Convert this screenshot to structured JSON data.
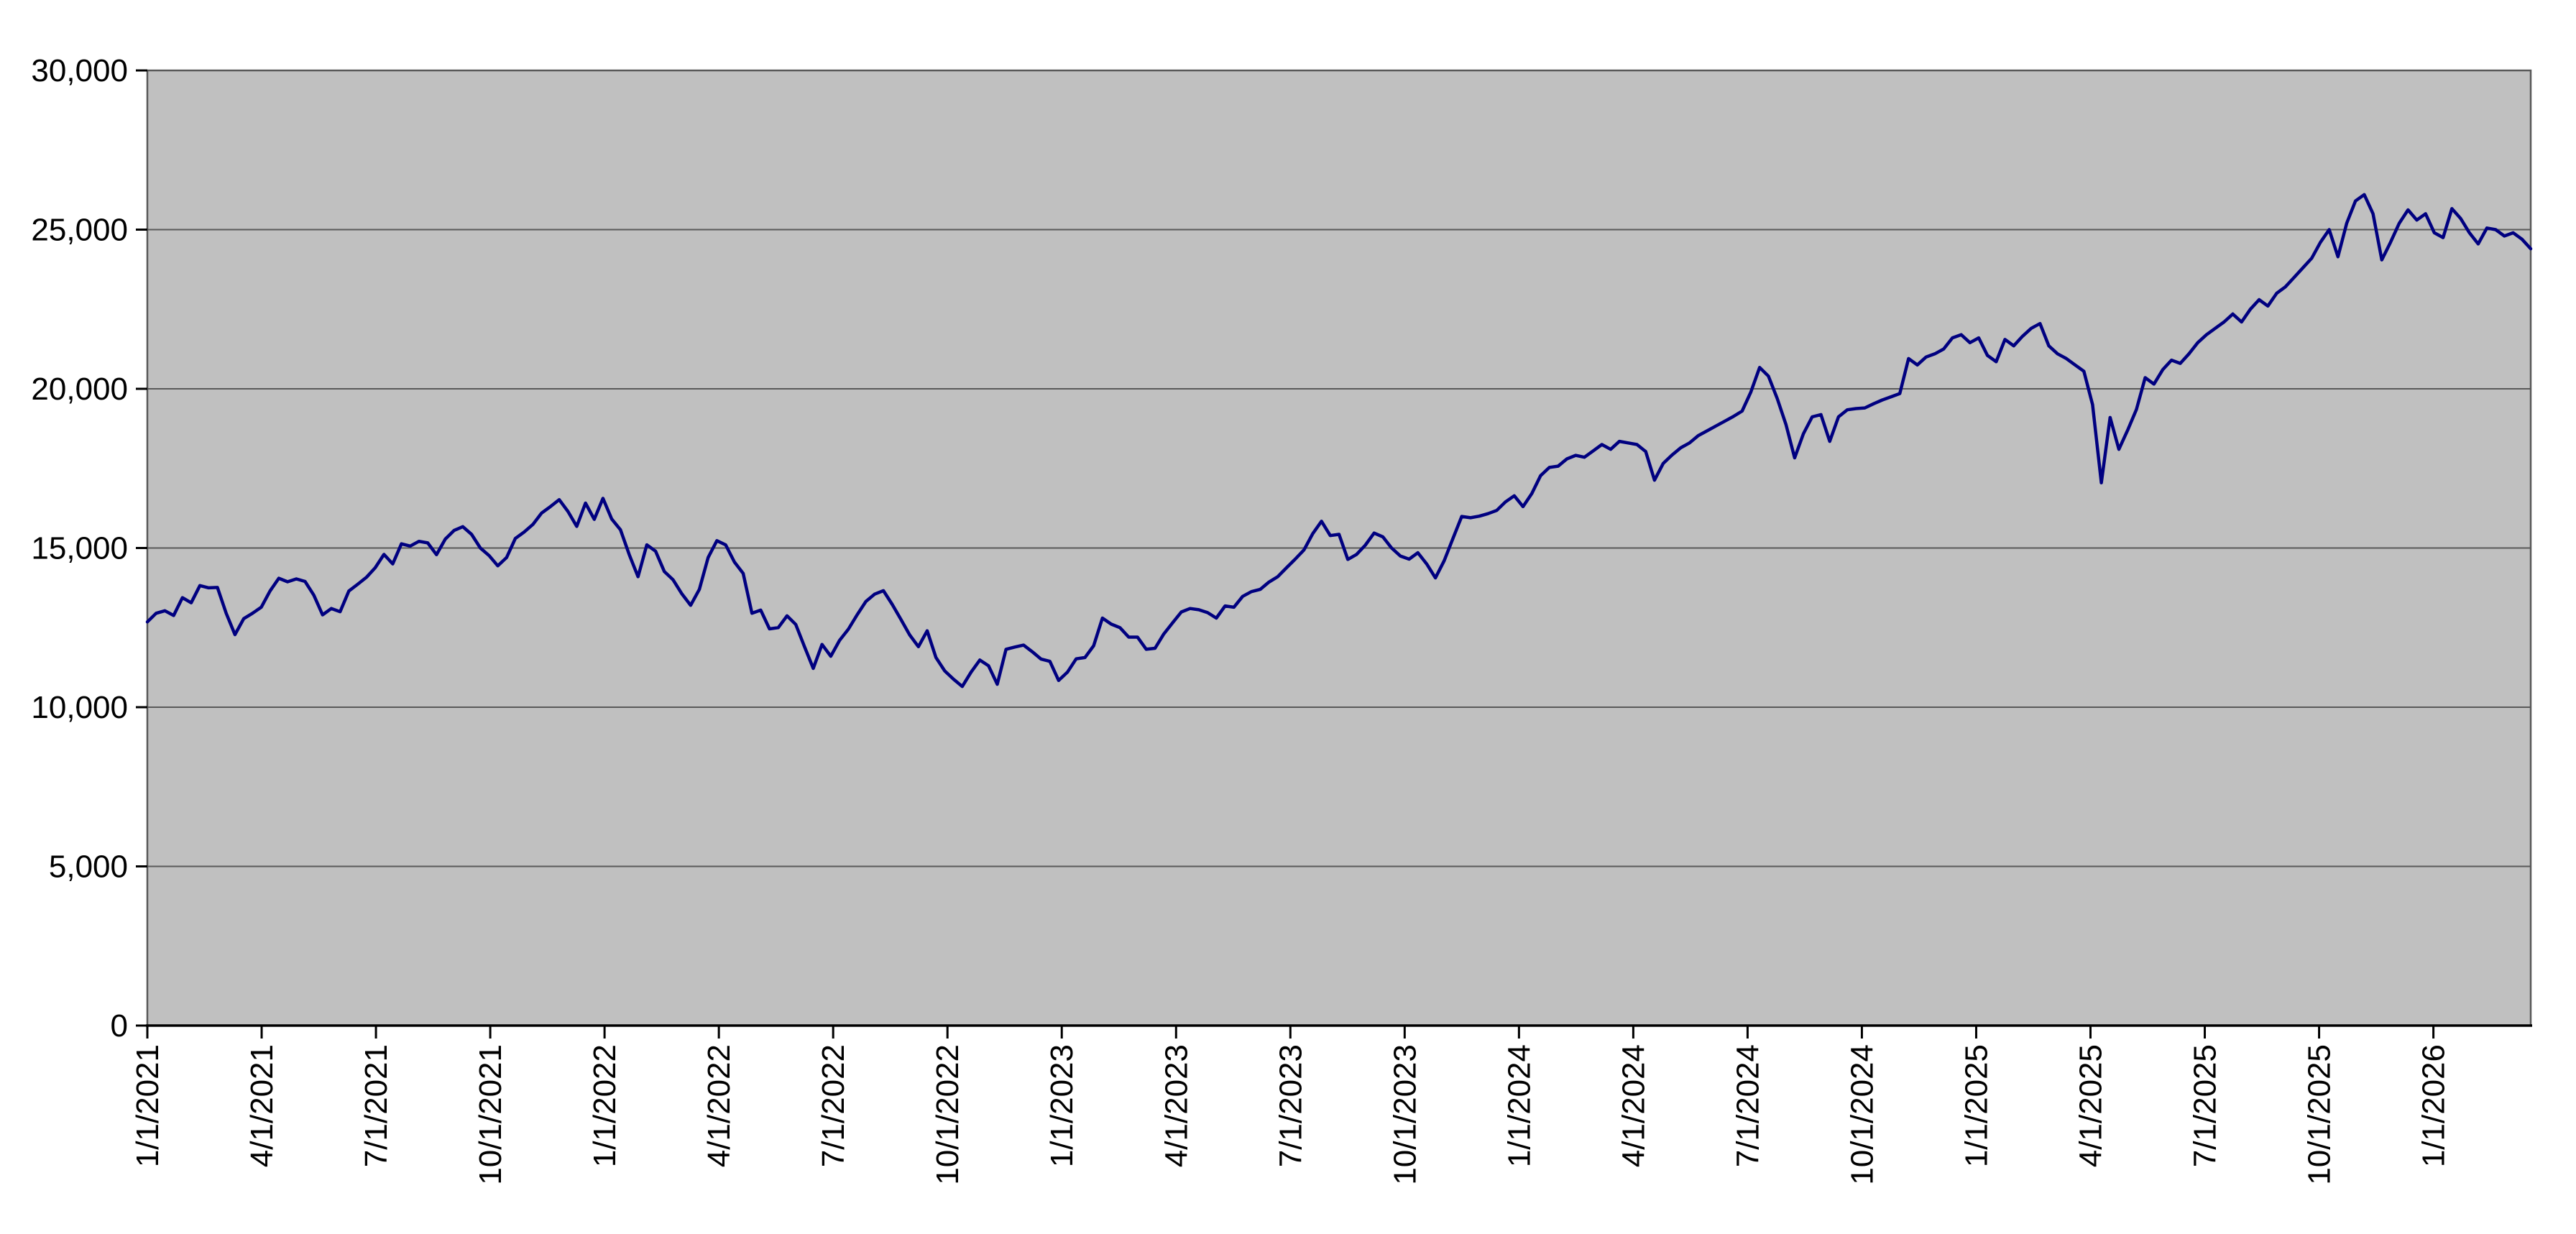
{
  "chart_data": {
    "type": "line",
    "title": "",
    "xlabel": "",
    "ylabel": "",
    "ylim": [
      0,
      30000
    ],
    "grid": "horizontal-major",
    "legend": "none",
    "plot_bg_color": "#c0c0c0",
    "grid_color": "#595959",
    "border_color": "#595959",
    "axis_color": "#000000",
    "y_axis": {
      "values": [
        0,
        5000,
        10000,
        15000,
        20000,
        25000,
        30000
      ],
      "labels": [
        "0",
        "5,000",
        "10,000",
        "15,000",
        "20,000",
        "25,000",
        "30,000"
      ]
    },
    "x_axis": {
      "labels": [
        "1/1/2021",
        "4/1/2021",
        "7/1/2021",
        "10/1/2021",
        "1/1/2022",
        "4/1/2022",
        "7/1/2022",
        "10/1/2022",
        "1/1/2023",
        "4/1/2023",
        "7/1/2023",
        "10/1/2023",
        "1/1/2024",
        "4/1/2024",
        "7/1/2024",
        "10/1/2024",
        "1/1/2025",
        "4/1/2025",
        "7/1/2025",
        "10/1/2025",
        "1/1/2026"
      ],
      "tick_interval_months": 3,
      "label_rotation_degrees": -90
    },
    "series": [
      {
        "name": "",
        "color": "#000080",
        "start_date": "1/1/2021",
        "point_interval": "weekly",
        "values": [
          12680,
          12950,
          13030,
          12880,
          13440,
          13280,
          13820,
          13750,
          13760,
          12950,
          12280,
          12780,
          12950,
          13140,
          13650,
          14050,
          13940,
          14030,
          13950,
          13520,
          12900,
          13100,
          13000,
          13650,
          13860,
          14080,
          14380,
          14800,
          14500,
          15130,
          15060,
          15210,
          15160,
          14790,
          15280,
          15550,
          15670,
          15430,
          15000,
          14760,
          14440,
          14700,
          15300,
          15500,
          15740,
          16100,
          16300,
          16520,
          16150,
          15680,
          16410,
          15900,
          16560,
          15910,
          15570,
          14790,
          14100,
          15100,
          14900,
          14260,
          14000,
          13560,
          13200,
          13700,
          14700,
          15230,
          15100,
          14560,
          14200,
          12950,
          13050,
          12460,
          12500,
          12870,
          12600,
          11900,
          11220,
          11970,
          11600,
          12100,
          12450,
          12900,
          13320,
          13550,
          13660,
          13230,
          12760,
          12270,
          11900,
          12400,
          11560,
          11140,
          10880,
          10650,
          11100,
          11480,
          11300,
          10720,
          11820,
          11890,
          11950,
          11740,
          11510,
          11440,
          10840,
          11100,
          11520,
          11560,
          11930,
          12800,
          12610,
          12500,
          12200,
          12200,
          11820,
          11850,
          12300,
          12650,
          12990,
          13100,
          13060,
          12970,
          12800,
          13180,
          13140,
          13480,
          13630,
          13700,
          13930,
          14100,
          14380,
          14650,
          14940,
          15450,
          15840,
          15390,
          15430,
          14640,
          14800,
          15090,
          15470,
          15350,
          15000,
          14750,
          14650,
          14850,
          14500,
          14060,
          14600,
          15300,
          15990,
          15950,
          16000,
          16080,
          16180,
          16450,
          16640,
          16300,
          16710,
          17270,
          17530,
          17570,
          17800,
          17910,
          17850,
          18050,
          18250,
          18100,
          18350,
          18300,
          18250,
          18030,
          17130,
          17660,
          17920,
          18150,
          18300,
          18530,
          18680,
          18830,
          18980,
          19130,
          19300,
          19900,
          20670,
          20400,
          19700,
          18880,
          17830,
          18590,
          19120,
          19190,
          18350,
          19120,
          19340,
          19380,
          19400,
          19530,
          19650,
          19750,
          19850,
          20950,
          20750,
          21000,
          21100,
          21250,
          21600,
          21700,
          21450,
          21600,
          21050,
          20850,
          21550,
          21350,
          21650,
          21900,
          22050,
          21350,
          21100,
          20950,
          20750,
          20550,
          19500,
          17050,
          19100,
          18100,
          18700,
          19350,
          20350,
          20150,
          20600,
          20900,
          20800,
          21100,
          21450,
          21700,
          21900,
          22100,
          22350,
          22100,
          22500,
          22800,
          22600,
          23000,
          23200,
          23500,
          23800,
          24100,
          24600,
          25000,
          24150,
          25200,
          25900,
          26100,
          25500,
          24050,
          24600,
          25200,
          25620,
          25300,
          25500,
          24900,
          24750,
          25660,
          25350,
          24900,
          24550,
          25050,
          25000,
          24800,
          24900,
          24700,
          24400
        ]
      }
    ]
  }
}
